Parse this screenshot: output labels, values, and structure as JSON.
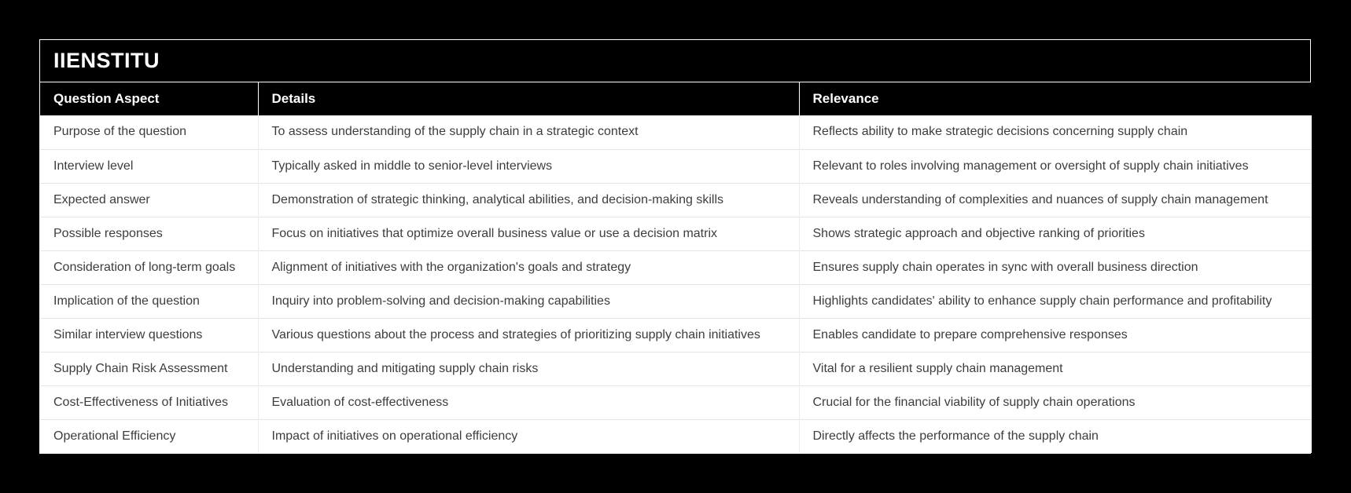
{
  "brand": {
    "title": "IIENSTITU"
  },
  "colors": {
    "page_background": "#000000",
    "header_background": "#000000",
    "header_text": "#ffffff",
    "row_background": "#ffffff",
    "row_text": "#3d3d3d",
    "outer_border": "#ffffff",
    "row_divider": "#e4e4e4"
  },
  "table": {
    "columns": [
      "Question Aspect",
      "Details",
      "Relevance"
    ],
    "rows": [
      {
        "aspect": "Purpose of the question",
        "details": "To assess understanding of the supply chain in a strategic context",
        "relevance": "Reflects ability to make strategic decisions concerning supply chain"
      },
      {
        "aspect": "Interview level",
        "details": "Typically asked in middle to senior-level interviews",
        "relevance": "Relevant to roles involving management or oversight of supply chain initiatives"
      },
      {
        "aspect": "Expected answer",
        "details": "Demonstration of strategic thinking, analytical abilities, and decision-making skills",
        "relevance": "Reveals understanding of complexities and nuances of supply chain management"
      },
      {
        "aspect": "Possible responses",
        "details": "Focus on initiatives that optimize overall business value or use a decision matrix",
        "relevance": "Shows strategic approach and objective ranking of priorities"
      },
      {
        "aspect": "Consideration of long-term goals",
        "details": "Alignment of initiatives with the organization's goals and strategy",
        "relevance": "Ensures supply chain operates in sync with overall business direction"
      },
      {
        "aspect": "Implication of the question",
        "details": "Inquiry into problem-solving and decision-making capabilities",
        "relevance": "Highlights candidates' ability to enhance supply chain performance and profitability"
      },
      {
        "aspect": "Similar interview questions",
        "details": "Various questions about the process and strategies of prioritizing supply chain initiatives",
        "relevance": "Enables candidate to prepare comprehensive responses"
      },
      {
        "aspect": "Supply Chain Risk Assessment",
        "details": "Understanding and mitigating supply chain risks",
        "relevance": "Vital for a resilient supply chain management"
      },
      {
        "aspect": "Cost-Effectiveness of Initiatives",
        "details": "Evaluation of cost-effectiveness",
        "relevance": "Crucial for the financial viability of supply chain operations"
      },
      {
        "aspect": "Operational Efficiency",
        "details": "Impact of initiatives on operational efficiency",
        "relevance": "Directly affects the performance of the supply chain"
      }
    ]
  }
}
